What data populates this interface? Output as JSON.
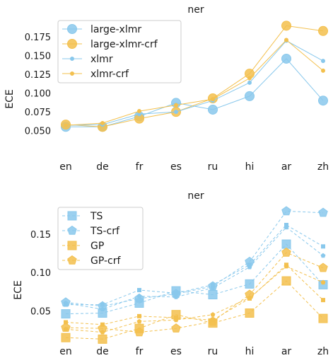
{
  "chart_data": [
    {
      "type": "line",
      "title": "ner",
      "xlabel": "",
      "ylabel": "ECE",
      "categories": [
        "en",
        "de",
        "fr",
        "es",
        "ru",
        "hi",
        "ar",
        "zh"
      ],
      "yticks": [
        "0.050",
        "0.075",
        "0.100",
        "0.125",
        "0.150",
        "0.175"
      ],
      "ylim": [
        0.026,
        0.196
      ],
      "grid": false,
      "legend": "top-left",
      "series": [
        {
          "name": "large-xlmr",
          "color": "#89c8ec",
          "marker": "circle-large",
          "dash": false,
          "values": [
            0.055,
            0.055,
            0.069,
            0.087,
            0.078,
            0.096,
            0.146,
            0.09
          ]
        },
        {
          "name": "large-xlmr-crf",
          "color": "#f3c04e",
          "marker": "circle-large",
          "dash": false,
          "values": [
            0.058,
            0.055,
            0.066,
            0.075,
            0.093,
            0.126,
            0.19,
            0.183
          ]
        },
        {
          "name": "xlmr",
          "color": "#89c8ec",
          "marker": "dot",
          "dash": false,
          "values": [
            0.057,
            0.058,
            0.072,
            0.075,
            0.09,
            0.114,
            0.17,
            0.143
          ]
        },
        {
          "name": "xlmr-crf",
          "color": "#f3c04e",
          "marker": "dot",
          "dash": false,
          "values": [
            0.057,
            0.06,
            0.076,
            0.084,
            0.092,
            0.12,
            0.171,
            0.13
          ]
        }
      ]
    },
    {
      "type": "line",
      "title": "ner",
      "xlabel": "",
      "ylabel": "ECE",
      "categories": [
        "en",
        "de",
        "fr",
        "es",
        "ru",
        "hi",
        "ar",
        "zh"
      ],
      "yticks": [
        "0.05",
        "0.10",
        "0.15"
      ],
      "ylim": [
        0.005,
        0.186
      ],
      "grid": false,
      "legend": "top-left",
      "series": [
        {
          "name": "TS",
          "color": "#89c8ec",
          "marker": "square-large",
          "dash": true,
          "values": [
            0.046,
            0.047,
            0.06,
            0.076,
            0.071,
            0.085,
            0.137,
            0.084
          ]
        },
        {
          "name": "TS-crf",
          "color": "#89c8ec",
          "marker": "pentagon-large",
          "dash": true,
          "values": [
            0.061,
            0.056,
            0.066,
            0.072,
            0.082,
            0.114,
            0.18,
            0.178
          ]
        },
        {
          "name": "",
          "color": "#89c8ec",
          "marker": "square-small",
          "dash": true,
          "values": [
            0.058,
            0.058,
            0.077,
            0.073,
            0.084,
            0.11,
            0.162,
            0.134
          ]
        },
        {
          "name": "",
          "color": "#89c8ec",
          "marker": "pentagon-small",
          "dash": true,
          "values": [
            0.06,
            0.052,
            0.069,
            0.068,
            0.08,
            0.107,
            0.159,
            0.122
          ]
        },
        {
          "name": "GP",
          "color": "#f3c04e",
          "marker": "square-large",
          "dash": true,
          "values": [
            0.015,
            0.013,
            0.027,
            0.045,
            0.034,
            0.047,
            0.089,
            0.04
          ]
        },
        {
          "name": "GP-crf",
          "color": "#f3c04e",
          "marker": "pentagon-large",
          "dash": true,
          "values": [
            0.028,
            0.027,
            0.022,
            0.027,
            0.036,
            0.071,
            0.126,
            0.106
          ]
        },
        {
          "name": "",
          "color": "#f3c04e",
          "marker": "square-small",
          "dash": true,
          "values": [
            0.035,
            0.032,
            0.043,
            0.041,
            0.038,
            0.066,
            0.11,
            0.064
          ]
        },
        {
          "name": "",
          "color": "#f3c04e",
          "marker": "pentagon-small",
          "dash": true,
          "values": [
            0.026,
            0.022,
            0.036,
            0.038,
            0.045,
            0.067,
            0.108,
            0.087
          ]
        }
      ]
    }
  ]
}
